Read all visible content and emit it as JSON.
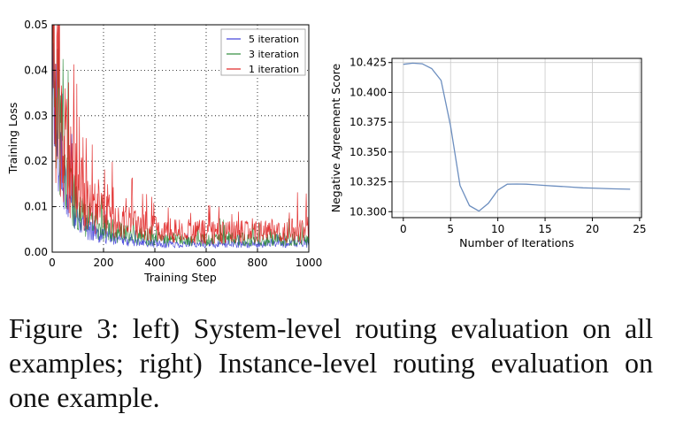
{
  "caption": "Figure 3: left) System-level routing evaluation on all examples; right) Instance-level routing evaluation on one example.",
  "chart_data": [
    {
      "type": "line",
      "xlabel": "Training Step",
      "ylabel": "Training Loss",
      "xlim": [
        0,
        1000
      ],
      "ylim": [
        0,
        0.05
      ],
      "xticks": [
        "0",
        "200",
        "400",
        "600",
        "800",
        "1000"
      ],
      "yticks": [
        "0.00",
        "0.01",
        "0.02",
        "0.03",
        "0.04",
        "0.05"
      ],
      "grid": true,
      "legend_position": "top-right",
      "series": [
        {
          "name": "5 iteration",
          "color": "#4040d8",
          "x": [
            0,
            10,
            20,
            30,
            40,
            50,
            60,
            80,
            100,
            120,
            150,
            200,
            250,
            300,
            350,
            400,
            500,
            600,
            700,
            800,
            900,
            1000
          ],
          "y": [
            0.036,
            0.028,
            0.023,
            0.019,
            0.016,
            0.013,
            0.011,
            0.008,
            0.006,
            0.005,
            0.004,
            0.003,
            0.0025,
            0.002,
            0.0018,
            0.0016,
            0.0015,
            0.0015,
            0.0015,
            0.0015,
            0.0016,
            0.0016
          ]
        },
        {
          "name": "3 iteration",
          "color": "#2e8b3a",
          "x": [
            0,
            10,
            20,
            30,
            40,
            50,
            60,
            80,
            100,
            120,
            150,
            200,
            250,
            300,
            350,
            400,
            500,
            600,
            700,
            800,
            900,
            1000
          ],
          "y": [
            0.037,
            0.03,
            0.025,
            0.021,
            0.018,
            0.015,
            0.013,
            0.01,
            0.008,
            0.0065,
            0.0055,
            0.0045,
            0.0037,
            0.0032,
            0.0028,
            0.0026,
            0.0024,
            0.0023,
            0.0023,
            0.0023,
            0.0024,
            0.0025
          ]
        },
        {
          "name": "1 iteration",
          "color": "#e02020",
          "x": [
            0,
            10,
            20,
            30,
            40,
            50,
            60,
            80,
            100,
            120,
            150,
            200,
            250,
            300,
            350,
            400,
            500,
            600,
            700,
            800,
            900,
            1000
          ],
          "y": [
            0.039,
            0.033,
            0.028,
            0.025,
            0.022,
            0.019,
            0.017,
            0.014,
            0.012,
            0.01,
            0.0085,
            0.007,
            0.006,
            0.0052,
            0.0046,
            0.0042,
            0.0038,
            0.0036,
            0.0035,
            0.0036,
            0.0038,
            0.004
          ]
        }
      ]
    },
    {
      "type": "line",
      "xlabel": "Number of Iterations",
      "ylabel": "Negative Agreement Score",
      "xlim": [
        -1.2,
        25.2
      ],
      "ylim": [
        10.295,
        10.4285
      ],
      "xticks": [
        "0",
        "5",
        "10",
        "15",
        "20",
        "25"
      ],
      "yticks": [
        "10.300",
        "10.325",
        "10.350",
        "10.375",
        "10.400",
        "10.425"
      ],
      "grid": true,
      "series": [
        {
          "color": "#6c8ebf",
          "x": [
            0,
            1,
            2,
            3,
            4,
            5,
            6,
            7,
            8,
            9,
            10,
            11,
            12,
            13,
            14,
            15,
            16,
            17,
            18,
            19,
            20,
            21,
            22,
            23,
            24
          ],
          "y": [
            10.4235,
            10.4245,
            10.424,
            10.42,
            10.41,
            10.372,
            10.322,
            10.305,
            10.3005,
            10.307,
            10.318,
            10.323,
            10.3232,
            10.323,
            10.3225,
            10.322,
            10.3215,
            10.321,
            10.3205,
            10.32,
            10.3198,
            10.3195,
            10.3192,
            10.319,
            10.3188
          ]
        }
      ]
    }
  ]
}
